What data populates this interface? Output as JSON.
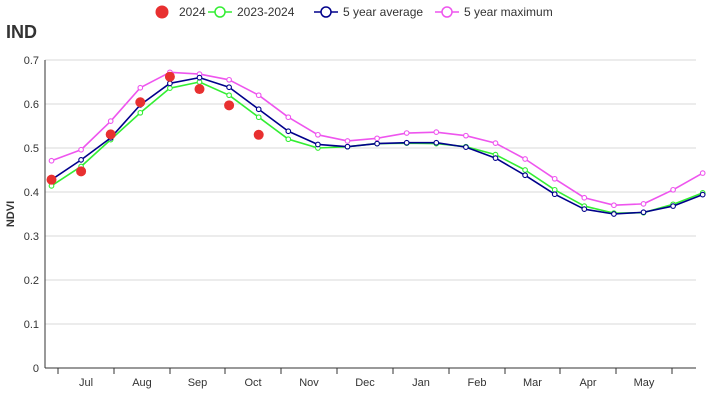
{
  "chart_data": {
    "type": "line",
    "title": "IND",
    "ylabel": "NDVI",
    "xlabel": "",
    "ylim": [
      0,
      0.7
    ],
    "yticks": [
      "0",
      "0.1",
      "0.2",
      "0.3",
      "0.4",
      "0.5",
      "0.6",
      "0.7"
    ],
    "month_labels": [
      "Jul",
      "Aug",
      "Sep",
      "Oct",
      "Nov",
      "Dec",
      "Jan",
      "Feb",
      "Mar",
      "Apr",
      "May"
    ],
    "grid": true,
    "legend_position": "top-center",
    "series": [
      {
        "name": "2024",
        "style": "markers",
        "color": "#e83030",
        "values": [
          0.428,
          0.447,
          0.531,
          0.604,
          0.662,
          0.634,
          0.597,
          0.53
        ]
      },
      {
        "name": "2023-2024",
        "style": "line",
        "color": "#33ee33",
        "values": [
          0.414,
          0.458,
          0.519,
          0.58,
          0.636,
          0.65,
          0.62,
          0.57,
          0.52,
          0.5,
          0.503,
          0.51,
          0.511,
          0.51,
          0.503,
          0.485,
          0.45,
          0.405,
          0.368,
          0.352,
          0.353,
          0.372,
          0.398
        ]
      },
      {
        "name": "5 year average",
        "style": "line",
        "color": "#00008b",
        "values": [
          0.428,
          0.473,
          0.523,
          0.598,
          0.647,
          0.66,
          0.638,
          0.588,
          0.538,
          0.508,
          0.503,
          0.51,
          0.512,
          0.512,
          0.502,
          0.477,
          0.438,
          0.395,
          0.361,
          0.35,
          0.354,
          0.368,
          0.394
        ]
      },
      {
        "name": "5 year maximum",
        "style": "line",
        "color": "#ee55ee",
        "values": [
          0.471,
          0.496,
          0.561,
          0.637,
          0.672,
          0.668,
          0.655,
          0.62,
          0.57,
          0.53,
          0.516,
          0.522,
          0.534,
          0.536,
          0.528,
          0.511,
          0.475,
          0.43,
          0.387,
          0.37,
          0.373,
          0.405,
          0.443
        ]
      }
    ]
  }
}
